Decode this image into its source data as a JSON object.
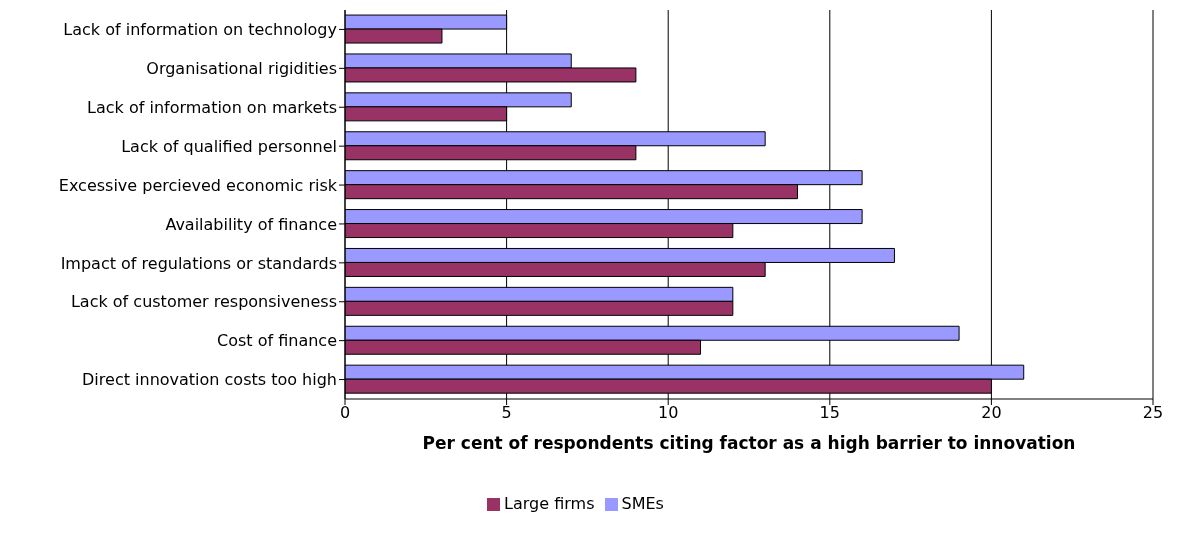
{
  "chart_data": {
    "type": "bar",
    "orientation": "horizontal",
    "xlabel": "Per cent of respondents citing factor as a high barrier to innovation",
    "categories": [
      "Lack of information on technology",
      "Organisational rigidities",
      "Lack of information on markets",
      "Lack of qualified personnel",
      "Excessive percieved economic risk",
      "Availability of finance",
      "Impact of regulations or standards",
      "Lack of customer responsiveness",
      "Cost of finance",
      "Direct innovation costs too high"
    ],
    "series": [
      {
        "name": "SMEs",
        "color": "#9999ff",
        "values": [
          5,
          7,
          7,
          13,
          16,
          16,
          17,
          12,
          19,
          21
        ]
      },
      {
        "name": "Large firms",
        "color": "#993366",
        "values": [
          3,
          9,
          5,
          9,
          14,
          12,
          13,
          12,
          11,
          20
        ]
      }
    ],
    "xlim": [
      0,
      25
    ],
    "xticks": [
      0,
      5,
      10,
      15,
      20,
      25
    ],
    "grid": "x",
    "legend": "bottom"
  }
}
